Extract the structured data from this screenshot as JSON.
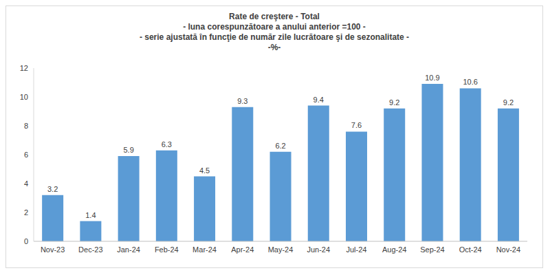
{
  "chart_data": {
    "type": "bar",
    "title": "Rate de creştere - Total",
    "subtitle": [
      "- luna corespunzătoare a anului anterior =100 -",
      "- serie ajustată în funcţie de număr zile lucrătoare şi de sezonalitate -",
      "-%-"
    ],
    "categories": [
      "Nov-23",
      "Dec-23",
      "Jan-24",
      "Feb-24",
      "Mar-24",
      "Apr-24",
      "May-24",
      "Jun-24",
      "Jul-24",
      "Aug-24",
      "Sep-24",
      "Oct-24",
      "Nov-24"
    ],
    "values": [
      3.2,
      1.4,
      5.9,
      6.3,
      4.5,
      9.3,
      6.2,
      9.4,
      7.6,
      9.2,
      10.9,
      10.6,
      9.2
    ],
    "color": "#5b9bd5",
    "ylim": [
      0,
      12
    ],
    "yticks": [
      0,
      2,
      4,
      6,
      8,
      10,
      12
    ],
    "grid": false,
    "data_labels": true
  }
}
